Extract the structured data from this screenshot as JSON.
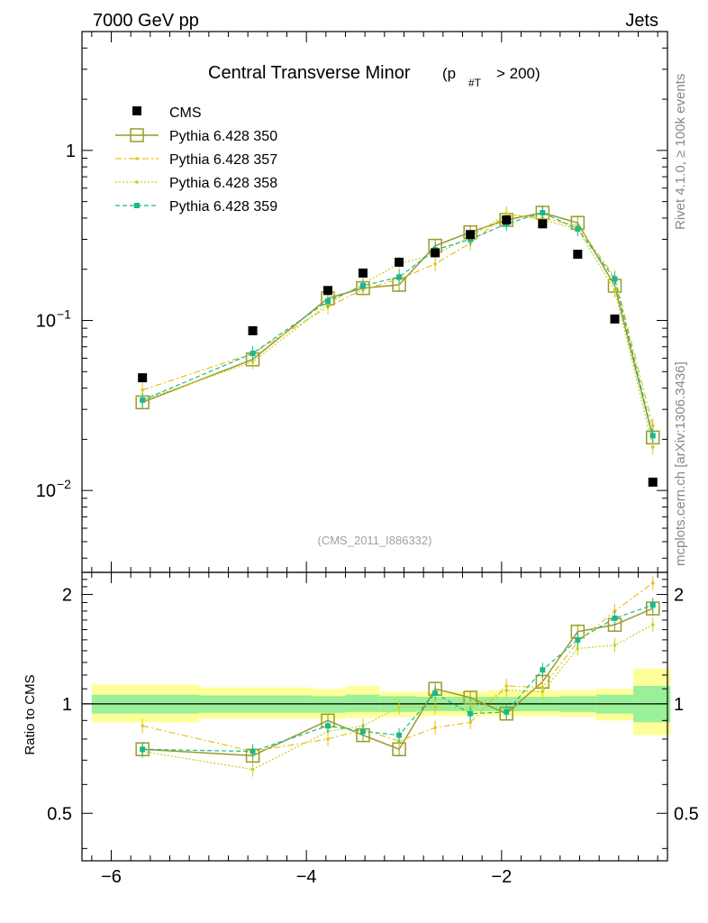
{
  "header": {
    "left": "7000 GeV pp",
    "right": "Jets"
  },
  "side": {
    "top": "Rivet 4.1.0, ≥ 100k events",
    "bottom": "mcplots.cern.ch [arXiv:1306.3436]"
  },
  "colors": {
    "cms": "#000000",
    "p350": "#9a9a2a",
    "p357": "#e6c21a",
    "p358": "#c8d21e",
    "p359": "#1ab98a",
    "band_outer": "#ffff99",
    "band_inner": "#99f099"
  },
  "chart_data": [
    {
      "type": "scatter",
      "title": "Central Transverse Minor",
      "title_suffix": "(p",
      "title_sub": "#T",
      "title_cut": "> 200)",
      "yscale": "log",
      "ylim": [
        0.0033,
        5
      ],
      "xlim": [
        -6.3,
        -0.3
      ],
      "y_tick_labels": [
        {
          "value": 1,
          "base": "1",
          "exp": ""
        },
        {
          "value": 0.1,
          "base": "10",
          "exp": "−1"
        },
        {
          "value": 0.01,
          "base": "10",
          "exp": "−2"
        }
      ],
      "annotation": "(CMS_2011_I886332)",
      "x": [
        -5.68,
        -4.55,
        -3.78,
        -3.42,
        -3.05,
        -2.68,
        -2.32,
        -1.95,
        -1.58,
        -1.22,
        -0.84,
        -0.45
      ],
      "series": [
        {
          "name": "CMS",
          "values": [
            0.046,
            0.087,
            0.15,
            0.19,
            0.22,
            0.25,
            0.32,
            0.39,
            0.37,
            0.245,
            0.102,
            0.0112
          ]
        },
        {
          "name": "Pythia 6.428 350",
          "values": [
            0.033,
            0.059,
            0.135,
            0.155,
            0.162,
            0.275,
            0.33,
            0.39,
            0.43,
            0.375,
            0.16,
            0.0205
          ]
        },
        {
          "name": "Pythia 6.428 357",
          "values": [
            0.039,
            0.064,
            0.12,
            0.152,
            0.175,
            0.215,
            0.285,
            0.42,
            0.4,
            0.36,
            0.18,
            0.024
          ]
        },
        {
          "name": "Pythia 6.428 358",
          "values": [
            0.034,
            0.057,
            0.125,
            0.165,
            0.215,
            0.245,
            0.31,
            0.425,
            0.39,
            0.345,
            0.15,
            0.018
          ]
        },
        {
          "name": "Pythia 6.428 359",
          "values": [
            0.034,
            0.064,
            0.13,
            0.16,
            0.18,
            0.26,
            0.3,
            0.37,
            0.43,
            0.345,
            0.175,
            0.021
          ]
        }
      ]
    },
    {
      "type": "scatter",
      "ylabel": "Ratio to CMS",
      "ylim": [
        0.37,
        2.3
      ],
      "xlim": [
        -6.3,
        -0.3
      ],
      "y_tick_labels": [
        {
          "value": 2,
          "label": "2"
        },
        {
          "value": 1,
          "label": "1"
        },
        {
          "value": 0.5,
          "label": "0.5"
        }
      ],
      "x_tick_labels": [
        {
          "value": -6,
          "label": "−6"
        },
        {
          "value": -4,
          "label": "−4"
        },
        {
          "value": -2,
          "label": "−2"
        }
      ],
      "bands": [
        {
          "x0": -6.2,
          "x1": -5.1,
          "outer": [
            0.89,
            1.13
          ],
          "inner": [
            0.94,
            1.06
          ]
        },
        {
          "x0": -5.1,
          "x1": -3.95,
          "outer": [
            0.91,
            1.11
          ],
          "inner": [
            0.945,
            1.055
          ]
        },
        {
          "x0": -3.95,
          "x1": -3.6,
          "outer": [
            0.91,
            1.1
          ],
          "inner": [
            0.945,
            1.05
          ]
        },
        {
          "x0": -3.6,
          "x1": -3.25,
          "outer": [
            0.915,
            1.12
          ],
          "inner": [
            0.95,
            1.06
          ]
        },
        {
          "x0": -3.25,
          "x1": -2.87,
          "outer": [
            0.92,
            1.08
          ],
          "inner": [
            0.95,
            1.05
          ]
        },
        {
          "x0": -2.87,
          "x1": -2.5,
          "outer": [
            0.925,
            1.08
          ],
          "inner": [
            0.955,
            1.045
          ]
        },
        {
          "x0": -2.5,
          "x1": -2.15,
          "outer": [
            0.925,
            1.08
          ],
          "inner": [
            0.955,
            1.045
          ]
        },
        {
          "x0": -2.15,
          "x1": -1.78,
          "outer": [
            0.925,
            1.09
          ],
          "inner": [
            0.955,
            1.045
          ]
        },
        {
          "x0": -1.78,
          "x1": -1.4,
          "outer": [
            0.925,
            1.09
          ],
          "inner": [
            0.955,
            1.045
          ]
        },
        {
          "x0": -1.4,
          "x1": -1.03,
          "outer": [
            0.92,
            1.09
          ],
          "inner": [
            0.95,
            1.05
          ]
        },
        {
          "x0": -1.03,
          "x1": -0.65,
          "outer": [
            0.9,
            1.1
          ],
          "inner": [
            0.94,
            1.06
          ]
        },
        {
          "x0": -0.65,
          "x1": -0.27,
          "outer": [
            0.82,
            1.25
          ],
          "inner": [
            0.89,
            1.12
          ]
        }
      ],
      "series": [
        {
          "name": "Pythia 6.428 350",
          "values": [
            0.75,
            0.72,
            0.9,
            0.82,
            0.75,
            1.1,
            1.04,
            0.94,
            1.15,
            1.58,
            1.65,
            1.83
          ]
        },
        {
          "name": "Pythia 6.428 357",
          "values": [
            0.87,
            0.74,
            0.8,
            0.85,
            0.79,
            0.86,
            0.89,
            1.12,
            1.11,
            1.48,
            1.8,
            2.15
          ]
        },
        {
          "name": "Pythia 6.428 358",
          "values": [
            0.74,
            0.66,
            0.84,
            0.87,
            0.98,
            0.98,
            0.97,
            1.09,
            1.08,
            1.42,
            1.45,
            1.65
          ]
        },
        {
          "name": "Pythia 6.428 359",
          "values": [
            0.75,
            0.74,
            0.87,
            0.84,
            0.82,
            1.07,
            0.94,
            0.95,
            1.24,
            1.5,
            1.72,
            1.87
          ]
        }
      ]
    }
  ]
}
